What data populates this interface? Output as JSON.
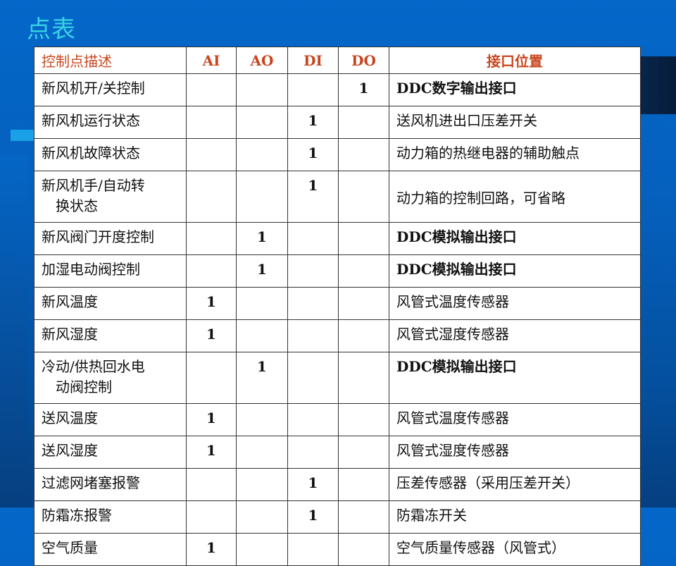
{
  "title": "点表",
  "table": {
    "headers": [
      "控制点描述",
      "AI",
      "AO",
      "DI",
      "DO",
      "接口位置"
    ],
    "rows": [
      {
        "desc": [
          "新风机开/关控制"
        ],
        "AI": "",
        "AO": "",
        "DI": "",
        "DO": "1",
        "iface": "DDC数字输出接口"
      },
      {
        "desc": [
          "新风机运行状态"
        ],
        "AI": "",
        "AO": "",
        "DI": "1",
        "DO": "",
        "iface": "送风机进出口压差开关"
      },
      {
        "desc": [
          "新风机故障状态"
        ],
        "AI": "",
        "AO": "",
        "DI": "1",
        "DO": "",
        "iface": "动力箱的热继电器的辅助触点"
      },
      {
        "desc": [
          "新风机手/自动转",
          "换状态"
        ],
        "AI": "",
        "AO": "",
        "DI": "1",
        "DO": "",
        "iface": "动力箱的控制回路，可省略"
      },
      {
        "desc": [
          "新风阀门开度控制"
        ],
        "AI": "",
        "AO": "1",
        "DI": "",
        "DO": "",
        "iface": "DDC模拟输出接口"
      },
      {
        "desc": [
          "加湿电动阀控制"
        ],
        "AI": "",
        "AO": "1",
        "DI": "",
        "DO": "",
        "iface": "DDC模拟输出接口"
      },
      {
        "desc": [
          "新风温度"
        ],
        "AI": "1",
        "AO": "",
        "DI": "",
        "DO": "",
        "iface": "风管式温度传感器"
      },
      {
        "desc": [
          "新风湿度"
        ],
        "AI": "1",
        "AO": "",
        "DI": "",
        "DO": "",
        "iface": "风管式湿度传感器"
      },
      {
        "desc": [
          "冷动/供热回水电",
          "动阀控制"
        ],
        "AI": "",
        "AO": "1",
        "DI": "",
        "DO": "",
        "iface": "DDC模拟输出接口"
      },
      {
        "desc": [
          "送风温度"
        ],
        "AI": "1",
        "AO": "",
        "DI": "",
        "DO": "",
        "iface": "风管式温度传感器"
      },
      {
        "desc": [
          "送风湿度"
        ],
        "AI": "1",
        "AO": "",
        "DI": "",
        "DO": "",
        "iface": "风管式湿度传感器"
      },
      {
        "desc": [
          "过滤网堵塞报警"
        ],
        "AI": "",
        "AO": "",
        "DI": "1",
        "DO": "",
        "iface": "压差传感器（采用压差开关）"
      },
      {
        "desc": [
          "防霜冻报警"
        ],
        "AI": "",
        "AO": "",
        "DI": "1",
        "DO": "",
        "iface": "防霜冻开关"
      },
      {
        "desc": [
          "空气质量"
        ],
        "AI": "1",
        "AO": "",
        "DI": "",
        "DO": "",
        "iface": "空气质量传感器（风管式）"
      }
    ]
  },
  "colors": {
    "header_text": "#c8461e",
    "title": "#37d2e6",
    "background": "#0467c9"
  }
}
